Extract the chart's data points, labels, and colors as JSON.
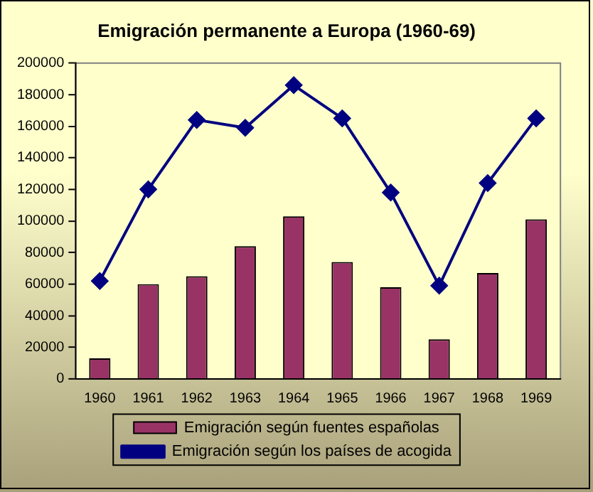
{
  "chart_data": {
    "type": "bar",
    "title": "Emigración permanente a Europa (1960-69)",
    "categories": [
      "1960",
      "1961",
      "1962",
      "1963",
      "1964",
      "1965",
      "1966",
      "1967",
      "1968",
      "1969"
    ],
    "series": [
      {
        "name": "Emigración según fuentes españolas",
        "color": "#993366",
        "values": [
          13000,
          60000,
          65000,
          84000,
          103000,
          74000,
          58000,
          25000,
          67000,
          101000
        ]
      },
      {
        "name": "Emigración según los países de acogida",
        "type": "line",
        "color": "#000080",
        "marker": "diamond",
        "values": [
          62000,
          120000,
          164000,
          159000,
          186000,
          165000,
          118000,
          59000,
          124000,
          165000
        ]
      }
    ],
    "ylim": [
      0,
      200000
    ],
    "yticks": [
      0,
      20000,
      40000,
      60000,
      80000,
      100000,
      120000,
      140000,
      160000,
      180000,
      200000
    ],
    "grid": false,
    "legend": "bottom"
  }
}
